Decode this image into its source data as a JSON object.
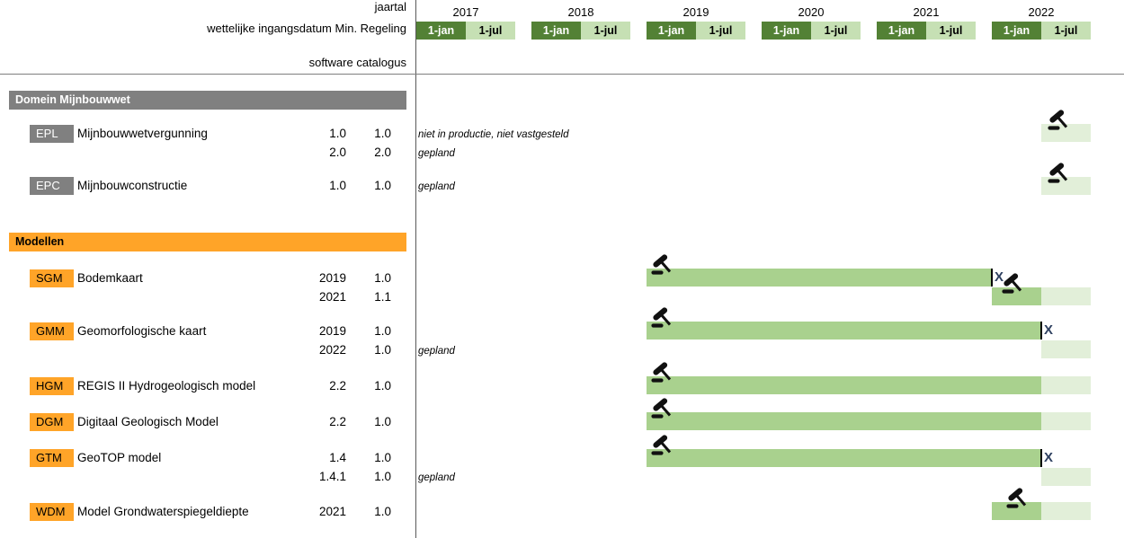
{
  "header": {
    "jaartal_label": "jaartal",
    "regeling_label": "wettelijke ingangsdatum Min. Regeling",
    "catalogus_label": "software catalogus",
    "years": [
      "2017",
      "2018",
      "2019",
      "2020",
      "2021",
      "2022"
    ],
    "jan_label": "1-jan",
    "jul_label": "1-jul"
  },
  "colors": {
    "dark_green": "#538135",
    "light_green_cell": "#c6e0b4",
    "bar_active_green": "#a9d18e",
    "bar_planned_pale_green": "#e2efd9",
    "gray": "#808080",
    "orange": "#ffa428",
    "x_mark_color": "#2e4060"
  },
  "sections": [
    {
      "title": "Domein Mijnbouwwet",
      "color_key": "gray",
      "rows": [
        {
          "code": "EPL",
          "name": "Mijnbouwwetvergunning",
          "versions": [
            {
              "jaartal": "1.0",
              "regeling": "1.0",
              "note": "niet in productie, niet vastgesteld"
            },
            {
              "jaartal": "2.0",
              "regeling": "2.0",
              "note": "gepland"
            }
          ]
        },
        {
          "code": "EPC",
          "name": "Mijnbouwconstructie",
          "versions": [
            {
              "jaartal": "1.0",
              "regeling": "1.0",
              "note": "gepland"
            }
          ]
        }
      ]
    },
    {
      "title": "Modellen",
      "color_key": "orange",
      "rows": [
        {
          "code": "SGM",
          "name": "Bodemkaart",
          "versions": [
            {
              "jaartal": "2019",
              "regeling": "1.0"
            },
            {
              "jaartal": "2021",
              "regeling": "1.1"
            }
          ]
        },
        {
          "code": "GMM",
          "name": "Geomorfologische kaart",
          "versions": [
            {
              "jaartal": "2019",
              "regeling": "1.0"
            },
            {
              "jaartal": "2022",
              "regeling": "1.0",
              "note": "gepland"
            }
          ]
        },
        {
          "code": "HGM",
          "name": "REGIS II Hydrogeologisch model",
          "versions": [
            {
              "jaartal": "2.2",
              "regeling": "1.0"
            }
          ]
        },
        {
          "code": "DGM",
          "name": "Digitaal Geologisch Model",
          "versions": [
            {
              "jaartal": "2.2",
              "regeling": "1.0"
            }
          ]
        },
        {
          "code": "GTM",
          "name": "GeoTOP model",
          "versions": [
            {
              "jaartal": "1.4",
              "regeling": "1.0"
            },
            {
              "jaartal": "1.4.1",
              "regeling": "1.0",
              "note": "gepland"
            }
          ]
        },
        {
          "code": "WDM",
          "name": "Model Grondwaterspiegeldiepte",
          "versions": [
            {
              "jaartal": "2021",
              "regeling": "1.0"
            }
          ]
        }
      ]
    }
  ],
  "chart_data": {
    "type": "gantt-timeline",
    "x_axis": {
      "years": [
        2017,
        2018,
        2019,
        2020,
        2021,
        2022
      ],
      "half_year_ticks": [
        "1-jan",
        "1-jul"
      ]
    },
    "x_marker": "X",
    "legend_hint": {
      "active_style": "vastgesteld/in productie (medium green)",
      "planned_style": "gepland (pale green)",
      "gavel_icon": "wettelijke vaststelling (gavel)"
    },
    "bars": [
      {
        "key": "epl",
        "row_label": "EPL Mijnbouwwetvergunning",
        "gavel": "2022-07",
        "segments": [
          {
            "from": "2022-07",
            "to": "2023-01",
            "style": "planned"
          }
        ]
      },
      {
        "key": "epc",
        "row_label": "EPC Mijnbouwconstructie",
        "gavel": "2022-07",
        "segments": [
          {
            "from": "2022-07",
            "to": "2023-01",
            "style": "planned"
          }
        ]
      },
      {
        "key": "sgm1",
        "row_label": "SGM Bodemkaart 2019/1.0",
        "gavel": "2019-01",
        "x_mark": "2022-01",
        "terminator": true,
        "segments": [
          {
            "from": "2019-01",
            "to": "2022-01",
            "style": "active"
          }
        ]
      },
      {
        "key": "sgm2",
        "row_label": "SGM Bodemkaart 2021/1.1",
        "gavel": "2022-01",
        "segments": [
          {
            "from": "2022-01",
            "to": "2022-07",
            "style": "active"
          },
          {
            "from": "2022-07",
            "to": "2023-01",
            "style": "planned"
          }
        ]
      },
      {
        "key": "gmm1",
        "row_label": "GMM Geomorfologische kaart 2019/1.0",
        "gavel": "2019-01",
        "x_mark": "2022-07",
        "terminator": true,
        "segments": [
          {
            "from": "2019-01",
            "to": "2022-07",
            "style": "active"
          }
        ]
      },
      {
        "key": "gmm2",
        "row_label": "GMM Geomorfologische kaart 2022/1.0 (gepland)",
        "segments": [
          {
            "from": "2022-07",
            "to": "2023-01",
            "style": "planned"
          }
        ]
      },
      {
        "key": "hgm",
        "row_label": "HGM REGIS II Hydrogeologisch model",
        "gavel": "2019-01",
        "segments": [
          {
            "from": "2019-01",
            "to": "2022-07",
            "style": "active"
          },
          {
            "from": "2022-07",
            "to": "2023-01",
            "style": "planned"
          }
        ]
      },
      {
        "key": "dgm",
        "row_label": "DGM Digitaal Geologisch Model",
        "gavel": "2019-01",
        "segments": [
          {
            "from": "2019-01",
            "to": "2022-07",
            "style": "active"
          },
          {
            "from": "2022-07",
            "to": "2023-01",
            "style": "planned"
          }
        ]
      },
      {
        "key": "gtm1",
        "row_label": "GTM GeoTOP model 1.4/1.0",
        "gavel": "2019-01",
        "x_mark": "2022-07",
        "terminator": true,
        "segments": [
          {
            "from": "2019-01",
            "to": "2022-07",
            "style": "active"
          }
        ]
      },
      {
        "key": "gtm2",
        "row_label": "GTM GeoTOP model 1.4.1/1.0 (gepland)",
        "segments": [
          {
            "from": "2022-07",
            "to": "2023-01",
            "style": "planned"
          }
        ]
      },
      {
        "key": "wdm",
        "row_label": "WDM Model Grondwaterspiegeldiepte 2021/1.0",
        "gavel": "2022-01",
        "segments": [
          {
            "from": "2022-01",
            "to": "2022-07",
            "style": "active"
          },
          {
            "from": "2022-07",
            "to": "2023-01",
            "style": "planned"
          }
        ]
      }
    ]
  }
}
